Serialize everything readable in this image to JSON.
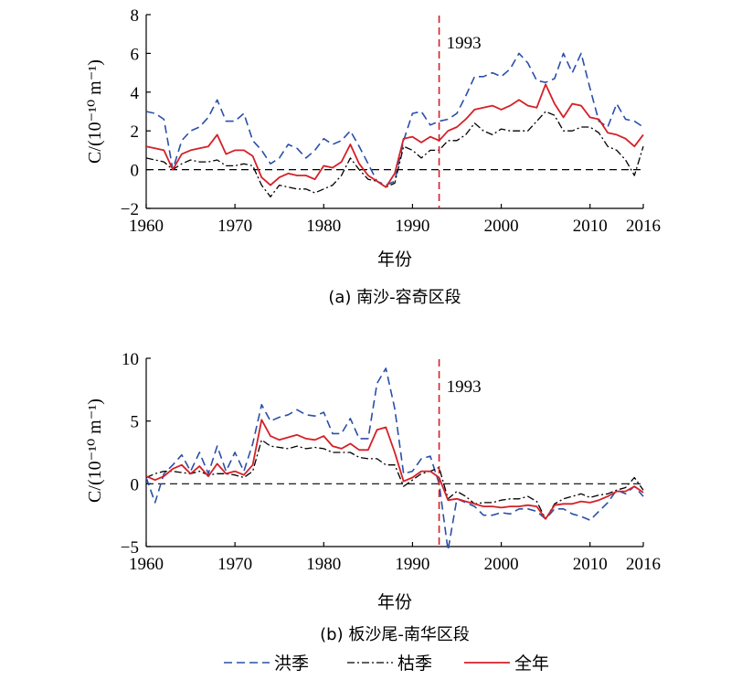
{
  "chart_data": [
    {
      "type": "line",
      "caption": "(a) 南沙-容奇区段",
      "ylabel": "C/(10⁻¹⁰ m⁻¹)",
      "xlabel": "年份",
      "xlim": [
        1960,
        2016
      ],
      "ylim": [
        -2,
        8
      ],
      "xticks": [
        "1960",
        "1970",
        "1980",
        "1990",
        "2000",
        "2010",
        "2016"
      ],
      "yticks": [
        "−2",
        "0",
        "2",
        "4",
        "6",
        "8"
      ],
      "reference_year": 1993,
      "reference_label": "1993",
      "zero_line": true,
      "series": [
        {
          "name": "洪季",
          "color": "#2a4fa8",
          "dash": "dash",
          "x": [
            1960,
            1961,
            1962,
            1963,
            1964,
            1965,
            1966,
            1967,
            1968,
            1969,
            1970,
            1971,
            1972,
            1973,
            1974,
            1975,
            1976,
            1977,
            1978,
            1979,
            1980,
            1981,
            1982,
            1983,
            1984,
            1985,
            1986,
            1987,
            1988,
            1989,
            1990,
            1991,
            1992,
            1993,
            1994,
            1995,
            1996,
            1997,
            1998,
            1999,
            2000,
            2001,
            2002,
            2003,
            2004,
            2005,
            2006,
            2007,
            2008,
            2009,
            2010,
            2011,
            2012,
            2013,
            2014,
            2015,
            2016
          ],
          "y": [
            3.0,
            2.9,
            2.6,
            0.0,
            1.5,
            2.0,
            2.2,
            2.7,
            3.6,
            2.5,
            2.5,
            2.9,
            1.5,
            1.0,
            0.3,
            0.6,
            1.3,
            1.1,
            0.6,
            1.0,
            1.6,
            1.3,
            1.5,
            2.0,
            1.2,
            0.3,
            -0.6,
            -0.8,
            -0.6,
            1.5,
            2.9,
            3.0,
            2.3,
            2.5,
            2.6,
            2.9,
            3.8,
            4.8,
            4.8,
            5.0,
            4.8,
            5.2,
            6.0,
            5.5,
            4.6,
            4.5,
            4.7,
            6.0,
            5.0,
            6.0,
            4.2,
            2.5,
            2.2,
            3.4,
            2.6,
            2.5,
            2.2
          ]
        },
        {
          "name": "枯季",
          "color": "#000000",
          "dash": "dashdot",
          "x": [
            1960,
            1961,
            1962,
            1963,
            1964,
            1965,
            1966,
            1967,
            1968,
            1969,
            1970,
            1971,
            1972,
            1973,
            1974,
            1975,
            1976,
            1977,
            1978,
            1979,
            1980,
            1981,
            1982,
            1983,
            1984,
            1985,
            1986,
            1987,
            1988,
            1989,
            1990,
            1991,
            1992,
            1993,
            1994,
            1995,
            1996,
            1997,
            1998,
            1999,
            2000,
            2001,
            2002,
            2003,
            2004,
            2005,
            2006,
            2007,
            2008,
            2009,
            2010,
            2011,
            2012,
            2013,
            2014,
            2015,
            2016
          ],
          "y": [
            0.6,
            0.5,
            0.4,
            0.0,
            0.3,
            0.5,
            0.4,
            0.4,
            0.5,
            0.2,
            0.2,
            0.3,
            0.2,
            -0.8,
            -1.4,
            -0.8,
            -0.9,
            -1.0,
            -1.0,
            -1.2,
            -1.0,
            -0.8,
            -0.3,
            0.6,
            0.0,
            -0.5,
            -0.6,
            -0.9,
            -0.7,
            1.2,
            1.0,
            0.6,
            1.0,
            1.0,
            1.5,
            1.5,
            1.8,
            2.4,
            2.0,
            1.8,
            2.1,
            2.0,
            2.0,
            2.0,
            2.5,
            3.0,
            2.8,
            2.0,
            2.0,
            2.2,
            2.2,
            1.9,
            1.2,
            1.0,
            0.5,
            -0.3,
            1.2
          ]
        },
        {
          "name": "全年",
          "color": "#d42027",
          "dash": "solid",
          "x": [
            1960,
            1961,
            1962,
            1963,
            1964,
            1965,
            1966,
            1967,
            1968,
            1969,
            1970,
            1971,
            1972,
            1973,
            1974,
            1975,
            1976,
            1977,
            1978,
            1979,
            1980,
            1981,
            1982,
            1983,
            1984,
            1985,
            1986,
            1987,
            1988,
            1989,
            1990,
            1991,
            1992,
            1993,
            1994,
            1995,
            1996,
            1997,
            1998,
            1999,
            2000,
            2001,
            2002,
            2003,
            2004,
            2005,
            2006,
            2007,
            2008,
            2009,
            2010,
            2011,
            2012,
            2013,
            2014,
            2015,
            2016
          ],
          "y": [
            1.2,
            1.1,
            1.0,
            0.0,
            0.8,
            1.0,
            1.1,
            1.2,
            1.8,
            0.8,
            1.0,
            1.0,
            0.7,
            -0.4,
            -0.8,
            -0.4,
            -0.2,
            -0.3,
            -0.3,
            -0.5,
            0.2,
            0.1,
            0.4,
            1.3,
            0.3,
            -0.3,
            -0.6,
            -0.9,
            -0.2,
            1.6,
            1.7,
            1.4,
            1.7,
            1.5,
            2.0,
            2.2,
            2.6,
            3.1,
            3.2,
            3.3,
            3.1,
            3.3,
            3.6,
            3.3,
            3.2,
            4.4,
            3.4,
            2.7,
            3.4,
            3.3,
            2.7,
            2.6,
            1.9,
            1.8,
            1.6,
            1.2,
            1.8
          ]
        }
      ]
    },
    {
      "type": "line",
      "caption": "(b) 板沙尾-南华区段",
      "ylabel": "C/(10⁻¹⁰ m⁻¹)",
      "xlabel": "年份",
      "xlim": [
        1960,
        2016
      ],
      "ylim": [
        -5,
        10
      ],
      "xticks": [
        "1960",
        "1970",
        "1980",
        "1990",
        "2000",
        "2010",
        "2016"
      ],
      "yticks": [
        "−5",
        "0",
        "5",
        "10"
      ],
      "reference_year": 1993,
      "reference_label": "1993",
      "zero_line": true,
      "series": [
        {
          "name": "洪季",
          "color": "#2a4fa8",
          "dash": "dash",
          "x": [
            1960,
            1961,
            1962,
            1963,
            1964,
            1965,
            1966,
            1967,
            1968,
            1969,
            1970,
            1971,
            1972,
            1973,
            1974,
            1975,
            1976,
            1977,
            1978,
            1979,
            1980,
            1981,
            1982,
            1983,
            1984,
            1985,
            1986,
            1987,
            1988,
            1989,
            1990,
            1991,
            1992,
            1993,
            1994,
            1995,
            1996,
            1997,
            1998,
            1999,
            2000,
            2001,
            2002,
            2003,
            2004,
            2005,
            2006,
            2007,
            2008,
            2009,
            2010,
            2011,
            2012,
            2013,
            2014,
            2015,
            2016
          ],
          "y": [
            0.5,
            -1.5,
            0.8,
            1.5,
            2.3,
            1.0,
            2.5,
            0.8,
            3.0,
            1.0,
            2.5,
            1.0,
            3.2,
            6.3,
            5.0,
            5.3,
            5.5,
            5.9,
            5.5,
            5.4,
            5.7,
            4.0,
            4.0,
            5.2,
            3.6,
            3.6,
            8.0,
            9.2,
            6.0,
            0.8,
            1.0,
            2.0,
            2.2,
            0.0,
            -5.3,
            -1.2,
            -1.5,
            -1.8,
            -2.5,
            -2.5,
            -2.3,
            -2.4,
            -2.0,
            -2.0,
            -2.2,
            -2.8,
            -2.0,
            -2.0,
            -2.4,
            -2.6,
            -2.9,
            -2.2,
            -1.5,
            -0.5,
            -0.8,
            -0.2,
            -1.0
          ]
        },
        {
          "name": "枯季",
          "color": "#000000",
          "dash": "dashdot",
          "x": [
            1960,
            1961,
            1962,
            1963,
            1964,
            1965,
            1966,
            1967,
            1968,
            1969,
            1970,
            1971,
            1972,
            1973,
            1974,
            1975,
            1976,
            1977,
            1978,
            1979,
            1980,
            1981,
            1982,
            1983,
            1984,
            1985,
            1986,
            1987,
            1988,
            1989,
            1990,
            1991,
            1992,
            1993,
            1994,
            1995,
            1996,
            1997,
            1998,
            1999,
            2000,
            2001,
            2002,
            2003,
            2004,
            2005,
            2006,
            2007,
            2008,
            2009,
            2010,
            2011,
            2012,
            2013,
            2014,
            2015,
            2016
          ],
          "y": [
            0.5,
            0.8,
            1.0,
            1.0,
            0.9,
            0.8,
            1.0,
            0.7,
            0.8,
            0.8,
            0.7,
            0.5,
            1.0,
            3.5,
            3.0,
            2.9,
            2.8,
            3.0,
            2.8,
            2.9,
            2.8,
            2.5,
            2.5,
            2.5,
            2.1,
            2.0,
            2.0,
            1.5,
            1.5,
            -0.2,
            0.3,
            0.8,
            1.0,
            1.3,
            -1.2,
            -0.6,
            -1.0,
            -1.6,
            -1.5,
            -1.5,
            -1.3,
            -1.2,
            -1.2,
            -1.0,
            -1.4,
            -2.8,
            -1.6,
            -1.2,
            -1.0,
            -0.8,
            -1.1,
            -0.9,
            -0.8,
            -0.5,
            -0.3,
            0.5,
            -0.5
          ]
        },
        {
          "name": "全年",
          "color": "#d42027",
          "dash": "solid",
          "x": [
            1960,
            1961,
            1962,
            1963,
            1964,
            1965,
            1966,
            1967,
            1968,
            1969,
            1970,
            1971,
            1972,
            1973,
            1974,
            1975,
            1976,
            1977,
            1978,
            1979,
            1980,
            1981,
            1982,
            1983,
            1984,
            1985,
            1986,
            1987,
            1988,
            1989,
            1990,
            1991,
            1992,
            1993,
            1994,
            1995,
            1996,
            1997,
            1998,
            1999,
            2000,
            2001,
            2002,
            2003,
            2004,
            2005,
            2006,
            2007,
            2008,
            2009,
            2010,
            2011,
            2012,
            2013,
            2014,
            2015,
            2016
          ],
          "y": [
            0.6,
            0.3,
            0.6,
            1.2,
            1.5,
            0.8,
            1.4,
            0.6,
            1.6,
            0.8,
            1.0,
            0.7,
            1.5,
            5.1,
            3.8,
            3.5,
            3.7,
            3.9,
            3.6,
            3.5,
            3.8,
            3.0,
            2.8,
            3.2,
            2.7,
            2.7,
            4.3,
            4.5,
            2.5,
            0.2,
            0.5,
            1.0,
            1.0,
            0.5,
            -1.3,
            -1.2,
            -1.4,
            -1.6,
            -1.8,
            -1.8,
            -1.9,
            -1.8,
            -1.8,
            -1.7,
            -1.8,
            -2.8,
            -1.7,
            -1.6,
            -1.6,
            -1.4,
            -1.5,
            -1.3,
            -1.0,
            -0.6,
            -0.6,
            -0.2,
            -0.7
          ]
        }
      ]
    }
  ],
  "legend": [
    {
      "name": "洪季",
      "color": "#2a4fa8",
      "dash": "dash"
    },
    {
      "name": "枯季",
      "color": "#000000",
      "dash": "dashdot"
    },
    {
      "name": "全年",
      "color": "#d42027",
      "dash": "solid"
    }
  ]
}
